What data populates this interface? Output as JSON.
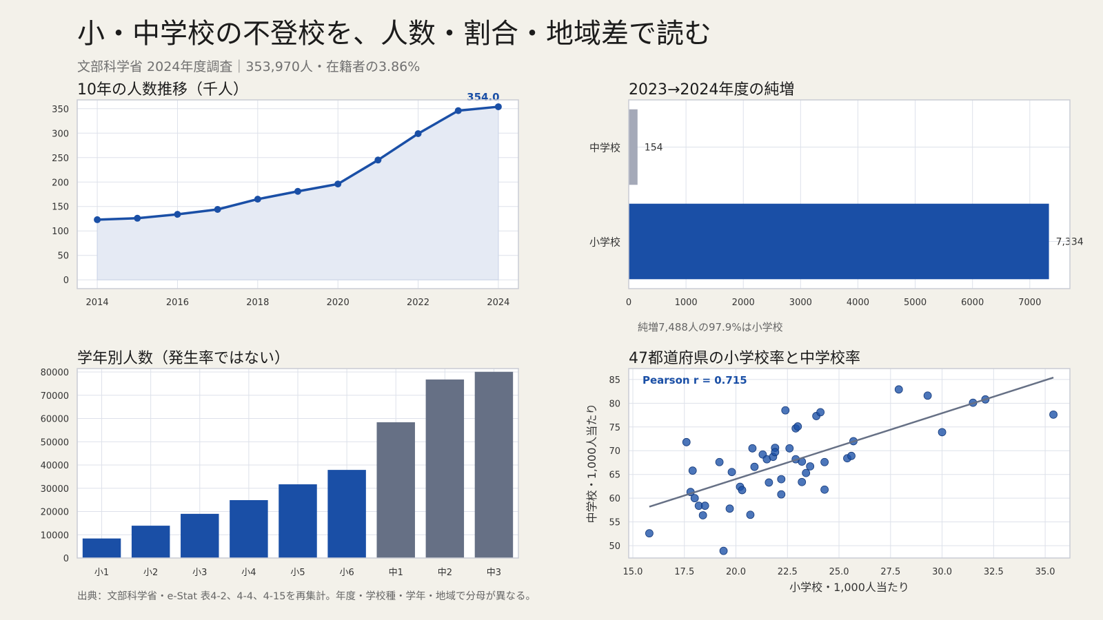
{
  "header": {
    "title": "小・中学校の不登校を、人数・割合・地域差で読む",
    "subtitle": "文部科学省 2024年度調査｜353,970人・在籍者の3.86%"
  },
  "footer": {
    "source": "出典：文部科学省・e-Stat 表4-2、4-4、4-15を再集計。年度・学校種・学年・地域で分母が異なる。"
  },
  "colors": {
    "blue": "#1a4fa6",
    "slate": "#667085",
    "grey_bar": "#a4a9b8",
    "area_fill": "#e5eaf4",
    "grid": "#dde1ea",
    "frame": "#c9ccd4",
    "plot_bg": "#ffffff"
  },
  "chart_data": [
    {
      "id": "trend",
      "type": "line",
      "title": "10年の人数推移（千人）",
      "x": [
        2014,
        2015,
        2016,
        2017,
        2018,
        2019,
        2020,
        2021,
        2022,
        2023,
        2024
      ],
      "values": [
        123,
        126,
        134,
        144,
        165,
        181,
        196,
        245,
        299,
        346,
        354
      ],
      "last_label": "354.0",
      "xlim": [
        2013.5,
        2024.5
      ],
      "ylim": [
        -18,
        368
      ],
      "xticks": [
        2014,
        2016,
        2018,
        2020,
        2022,
        2024
      ],
      "yticks": [
        0,
        50,
        100,
        150,
        200,
        250,
        300,
        350
      ],
      "grid": true,
      "fill": true
    },
    {
      "id": "increase",
      "type": "bar",
      "orientation": "horizontal",
      "title": "2023→2024年度の純増",
      "categories": [
        "中学校",
        "小学校"
      ],
      "values": [
        154,
        7334
      ],
      "value_labels": [
        "154",
        "7,334"
      ],
      "xlim": [
        0,
        7700
      ],
      "xticks": [
        0,
        1000,
        2000,
        3000,
        4000,
        5000,
        6000,
        7000
      ],
      "grid": true,
      "note": "純増7,488人の97.9%は小学校"
    },
    {
      "id": "grade",
      "type": "bar",
      "title": "学年別人数（発生率ではない）",
      "categories": [
        "小1",
        "小2",
        "小3",
        "小4",
        "小5",
        "小6",
        "中1",
        "中2",
        "中3"
      ],
      "values": [
        8400,
        13900,
        19000,
        24900,
        31700,
        37900,
        58400,
        76800,
        80100
      ],
      "ylim": [
        0,
        81500
      ],
      "yticks": [
        0,
        10000,
        20000,
        30000,
        40000,
        50000,
        60000,
        70000,
        80000
      ],
      "grid": true
    },
    {
      "id": "pref",
      "type": "scatter",
      "title": "47都道府県の小学校率と中学校率",
      "xlabel": "小学校・1,000人当たり",
      "ylabel": "中学校・1,000人当たり",
      "annotation": "Pearson r = 0.715",
      "xlim": [
        14.8,
        36.2
      ],
      "ylim": [
        47.4,
        87.3
      ],
      "xticks": [
        15.0,
        17.5,
        20.0,
        22.5,
        25.0,
        27.5,
        30.0,
        32.5,
        35.0
      ],
      "yticks": [
        50,
        55,
        60,
        65,
        70,
        75,
        80,
        85
      ],
      "trend": {
        "x1": 15.8,
        "y1": 58.2,
        "x2": 35.4,
        "y2": 85.4
      },
      "points": [
        [
          15.8,
          52.6
        ],
        [
          17.6,
          71.8
        ],
        [
          17.8,
          61.3
        ],
        [
          17.9,
          65.8
        ],
        [
          18.0,
          60.0
        ],
        [
          18.2,
          58.4
        ],
        [
          18.4,
          56.4
        ],
        [
          18.5,
          58.4
        ],
        [
          19.2,
          67.6
        ],
        [
          19.4,
          48.9
        ],
        [
          19.7,
          57.8
        ],
        [
          19.8,
          65.5
        ],
        [
          20.2,
          62.4
        ],
        [
          20.3,
          61.7
        ],
        [
          20.7,
          56.5
        ],
        [
          20.8,
          70.5
        ],
        [
          20.9,
          66.6
        ],
        [
          21.3,
          69.2
        ],
        [
          21.5,
          68.2
        ],
        [
          21.6,
          63.3
        ],
        [
          21.8,
          68.7
        ],
        [
          21.9,
          70.6
        ],
        [
          21.9,
          69.7
        ],
        [
          22.2,
          64.0
        ],
        [
          22.2,
          60.8
        ],
        [
          22.4,
          78.5
        ],
        [
          22.6,
          70.5
        ],
        [
          22.9,
          68.2
        ],
        [
          22.9,
          74.7
        ],
        [
          23.0,
          75.1
        ],
        [
          23.2,
          67.7
        ],
        [
          23.2,
          63.4
        ],
        [
          23.4,
          65.3
        ],
        [
          23.6,
          66.7
        ],
        [
          23.9,
          77.3
        ],
        [
          24.1,
          78.1
        ],
        [
          24.3,
          67.6
        ],
        [
          24.3,
          61.8
        ],
        [
          25.4,
          68.4
        ],
        [
          25.6,
          68.9
        ],
        [
          25.7,
          72.0
        ],
        [
          27.9,
          82.9
        ],
        [
          29.3,
          81.6
        ],
        [
          30.0,
          73.9
        ],
        [
          31.5,
          80.1
        ],
        [
          32.1,
          80.8
        ],
        [
          35.4,
          77.6
        ]
      ]
    }
  ]
}
